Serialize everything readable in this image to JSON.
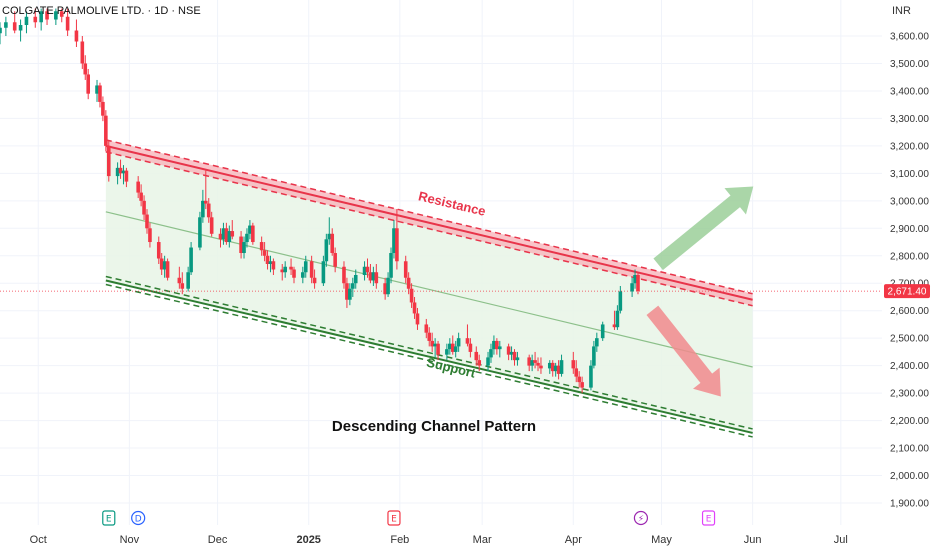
{
  "header": {
    "symbol": "COLGATE PALMOLIVE LTD. · 1D · NSE",
    "currency": "INR"
  },
  "colors": {
    "up": "#089981",
    "down": "#f23645",
    "resistance": "#e8344a",
    "support": "#2e7d32",
    "channel_fill": "#e7f5e6",
    "price_tag": "#f23645"
  },
  "events": [
    {
      "letter": "E",
      "kind": "earnings",
      "date": "2024-10-25",
      "color": "#089981"
    },
    {
      "letter": "D",
      "kind": "dividend",
      "date": "2024-11-04",
      "color": "#2962ff"
    },
    {
      "letter": "E",
      "kind": "earnings",
      "date": "2025-01-30",
      "color": "#f23645"
    },
    {
      "letter": "⚡",
      "kind": "event",
      "date": "2025-04-24",
      "color": "#9c27b0"
    },
    {
      "letter": "E",
      "kind": "earnings",
      "date": "2025-05-17",
      "color": "#e040fb"
    }
  ],
  "chart_data": {
    "type": "candlestick",
    "title": "Descending Channel Pattern",
    "y_ticks": [
      3600,
      3500,
      3400,
      3300,
      3200,
      3100,
      3000,
      2900,
      2800,
      2700,
      2600,
      2500,
      2400,
      2300,
      2200,
      2100,
      2000,
      1900
    ],
    "y_tick_labels": [
      "3,600.00",
      "3,500.00",
      "3,400.00",
      "3,300.00",
      "3,200.00",
      "3,100.00",
      "3,000.00",
      "2,900.00",
      "2,800.00",
      "2,700.00",
      "2,600.00",
      "2,500.00",
      "2,400.00",
      "2,300.00",
      "2,200.00",
      "2,100.00",
      "2,000.00",
      "1,900.00"
    ],
    "ylim": [
      1850,
      3700
    ],
    "x_range": [
      "2024-09-18",
      "2025-07-15"
    ],
    "x_ticks": [
      {
        "label": "Oct",
        "date": "2024-10-01"
      },
      {
        "label": "Nov",
        "date": "2024-11-01"
      },
      {
        "label": "Dec",
        "date": "2024-12-01"
      },
      {
        "label": "2025",
        "date": "2025-01-01"
      },
      {
        "label": "Feb",
        "date": "2025-02-01"
      },
      {
        "label": "Mar",
        "date": "2025-03-01"
      },
      {
        "label": "Apr",
        "date": "2025-04-01"
      },
      {
        "label": "May",
        "date": "2025-05-01"
      },
      {
        "label": "Jun",
        "date": "2025-06-01"
      },
      {
        "label": "Jul",
        "date": "2025-07-01"
      }
    ],
    "last_price": 2671.4,
    "last_price_label": "2,671.40",
    "resistance": {
      "label": "Resistance",
      "start": [
        "2024-10-24",
        3200
      ],
      "end": [
        "2025-06-01",
        2640
      ]
    },
    "support": {
      "label": "Support",
      "start": [
        "2024-10-24",
        2710
      ],
      "end": [
        "2025-06-01",
        2155
      ]
    },
    "midline": {
      "start": [
        "2024-10-24",
        2960
      ],
      "end": [
        "2025-06-01",
        2395
      ]
    },
    "arrows": [
      {
        "direction": "up",
        "from": [
          "2025-04-30",
          2770
        ],
        "to": [
          "2025-06-01",
          3050
        ],
        "color": "#9ccf9a"
      },
      {
        "direction": "down",
        "from": [
          "2025-04-28",
          2600
        ],
        "to": [
          "2025-05-21",
          2290
        ],
        "color": "#f28b8e"
      }
    ],
    "candles": [
      {
        "d": "2024-09-18",
        "o": 3610,
        "h": 3650,
        "l": 3570,
        "c": 3630
      },
      {
        "d": "2024-09-20",
        "o": 3630,
        "h": 3670,
        "l": 3600,
        "c": 3650
      },
      {
        "d": "2024-09-23",
        "o": 3650,
        "h": 3690,
        "l": 3610,
        "c": 3620
      },
      {
        "d": "2024-09-25",
        "o": 3620,
        "h": 3660,
        "l": 3580,
        "c": 3640
      },
      {
        "d": "2024-09-27",
        "o": 3640,
        "h": 3690,
        "l": 3610,
        "c": 3670
      },
      {
        "d": "2024-09-30",
        "o": 3670,
        "h": 3700,
        "l": 3630,
        "c": 3650
      },
      {
        "d": "2024-10-02",
        "o": 3650,
        "h": 3700,
        "l": 3620,
        "c": 3690
      },
      {
        "d": "2024-10-04",
        "o": 3690,
        "h": 3700,
        "l": 3640,
        "c": 3660
      },
      {
        "d": "2024-10-07",
        "o": 3660,
        "h": 3700,
        "l": 3640,
        "c": 3690
      },
      {
        "d": "2024-10-09",
        "o": 3690,
        "h": 3700,
        "l": 3650,
        "c": 3670
      },
      {
        "d": "2024-10-11",
        "o": 3670,
        "h": 3700,
        "l": 3600,
        "c": 3620
      },
      {
        "d": "2024-10-14",
        "o": 3620,
        "h": 3660,
        "l": 3560,
        "c": 3580
      },
      {
        "d": "2024-10-16",
        "o": 3580,
        "h": 3600,
        "l": 3480,
        "c": 3500
      },
      {
        "d": "2024-10-17",
        "o": 3500,
        "h": 3530,
        "l": 3440,
        "c": 3460
      },
      {
        "d": "2024-10-18",
        "o": 3460,
        "h": 3480,
        "l": 3370,
        "c": 3390
      },
      {
        "d": "2024-10-21",
        "o": 3390,
        "h": 3440,
        "l": 3360,
        "c": 3420
      },
      {
        "d": "2024-10-22",
        "o": 3420,
        "h": 3430,
        "l": 3340,
        "c": 3360
      },
      {
        "d": "2024-10-23",
        "o": 3360,
        "h": 3380,
        "l": 3290,
        "c": 3310
      },
      {
        "d": "2024-10-24",
        "o": 3310,
        "h": 3330,
        "l": 3180,
        "c": 3200
      },
      {
        "d": "2024-10-25",
        "o": 3200,
        "h": 3220,
        "l": 3070,
        "c": 3090
      },
      {
        "d": "2024-10-28",
        "o": 3090,
        "h": 3140,
        "l": 3060,
        "c": 3120
      },
      {
        "d": "2024-10-29",
        "o": 3120,
        "h": 3150,
        "l": 3080,
        "c": 3100
      },
      {
        "d": "2024-10-30",
        "o": 3100,
        "h": 3130,
        "l": 3060,
        "c": 3110
      },
      {
        "d": "2024-10-31",
        "o": 3110,
        "h": 3120,
        "l": 3050,
        "c": 3070
      },
      {
        "d": "2024-11-04",
        "o": 3070,
        "h": 3090,
        "l": 3010,
        "c": 3030
      },
      {
        "d": "2024-11-05",
        "o": 3030,
        "h": 3060,
        "l": 2980,
        "c": 3000
      },
      {
        "d": "2024-11-06",
        "o": 3000,
        "h": 3020,
        "l": 2930,
        "c": 2950
      },
      {
        "d": "2024-11-07",
        "o": 2950,
        "h": 2970,
        "l": 2880,
        "c": 2900
      },
      {
        "d": "2024-11-08",
        "o": 2900,
        "h": 2920,
        "l": 2830,
        "c": 2850
      },
      {
        "d": "2024-11-11",
        "o": 2850,
        "h": 2870,
        "l": 2770,
        "c": 2790
      },
      {
        "d": "2024-11-12",
        "o": 2790,
        "h": 2810,
        "l": 2730,
        "c": 2750
      },
      {
        "d": "2024-11-13",
        "o": 2750,
        "h": 2800,
        "l": 2720,
        "c": 2780
      },
      {
        "d": "2024-11-14",
        "o": 2780,
        "h": 2790,
        "l": 2710,
        "c": 2720
      },
      {
        "d": "2024-11-18",
        "o": 2720,
        "h": 2760,
        "l": 2680,
        "c": 2700
      },
      {
        "d": "2024-11-19",
        "o": 2700,
        "h": 2740,
        "l": 2660,
        "c": 2680
      },
      {
        "d": "2024-11-21",
        "o": 2680,
        "h": 2760,
        "l": 2670,
        "c": 2740
      },
      {
        "d": "2024-11-22",
        "o": 2740,
        "h": 2850,
        "l": 2730,
        "c": 2830
      },
      {
        "d": "2024-11-25",
        "o": 2830,
        "h": 2960,
        "l": 2820,
        "c": 2940
      },
      {
        "d": "2024-11-26",
        "o": 2940,
        "h": 3040,
        "l": 2920,
        "c": 3000
      },
      {
        "d": "2024-11-27",
        "o": 3000,
        "h": 3110,
        "l": 2970,
        "c": 2990
      },
      {
        "d": "2024-11-28",
        "o": 2990,
        "h": 3010,
        "l": 2920,
        "c": 2940
      },
      {
        "d": "2024-11-29",
        "o": 2940,
        "h": 2960,
        "l": 2870,
        "c": 2880
      },
      {
        "d": "2024-12-02",
        "o": 2880,
        "h": 2900,
        "l": 2830,
        "c": 2860
      },
      {
        "d": "2024-12-03",
        "o": 2860,
        "h": 2920,
        "l": 2840,
        "c": 2900
      },
      {
        "d": "2024-12-04",
        "o": 2900,
        "h": 2920,
        "l": 2840,
        "c": 2850
      },
      {
        "d": "2024-12-05",
        "o": 2850,
        "h": 2910,
        "l": 2830,
        "c": 2890
      },
      {
        "d": "2024-12-06",
        "o": 2890,
        "h": 2930,
        "l": 2860,
        "c": 2870
      },
      {
        "d": "2024-12-09",
        "o": 2870,
        "h": 2890,
        "l": 2790,
        "c": 2810
      },
      {
        "d": "2024-12-10",
        "o": 2810,
        "h": 2870,
        "l": 2790,
        "c": 2850
      },
      {
        "d": "2024-12-11",
        "o": 2850,
        "h": 2900,
        "l": 2830,
        "c": 2880
      },
      {
        "d": "2024-12-12",
        "o": 2880,
        "h": 2930,
        "l": 2860,
        "c": 2910
      },
      {
        "d": "2024-12-13",
        "o": 2910,
        "h": 2920,
        "l": 2840,
        "c": 2850
      },
      {
        "d": "2024-12-16",
        "o": 2850,
        "h": 2870,
        "l": 2800,
        "c": 2820
      },
      {
        "d": "2024-12-17",
        "o": 2820,
        "h": 2850,
        "l": 2780,
        "c": 2800
      },
      {
        "d": "2024-12-18",
        "o": 2800,
        "h": 2820,
        "l": 2750,
        "c": 2770
      },
      {
        "d": "2024-12-19",
        "o": 2770,
        "h": 2800,
        "l": 2740,
        "c": 2780
      },
      {
        "d": "2024-12-20",
        "o": 2780,
        "h": 2790,
        "l": 2730,
        "c": 2750
      },
      {
        "d": "2024-12-23",
        "o": 2750,
        "h": 2770,
        "l": 2710,
        "c": 2740
      },
      {
        "d": "2024-12-24",
        "o": 2740,
        "h": 2780,
        "l": 2720,
        "c": 2760
      },
      {
        "d": "2024-12-26",
        "o": 2760,
        "h": 2790,
        "l": 2730,
        "c": 2750
      },
      {
        "d": "2024-12-27",
        "o": 2750,
        "h": 2760,
        "l": 2700,
        "c": 2720
      },
      {
        "d": "2024-12-30",
        "o": 2720,
        "h": 2760,
        "l": 2700,
        "c": 2740
      },
      {
        "d": "2024-12-31",
        "o": 2740,
        "h": 2800,
        "l": 2720,
        "c": 2780
      },
      {
        "d": "2025-01-02",
        "o": 2780,
        "h": 2800,
        "l": 2700,
        "c": 2720
      },
      {
        "d": "2025-01-03",
        "o": 2720,
        "h": 2750,
        "l": 2680,
        "c": 2700
      },
      {
        "d": "2025-01-06",
        "o": 2700,
        "h": 2800,
        "l": 2690,
        "c": 2780
      },
      {
        "d": "2025-01-07",
        "o": 2780,
        "h": 2880,
        "l": 2760,
        "c": 2860
      },
      {
        "d": "2025-01-08",
        "o": 2860,
        "h": 2940,
        "l": 2840,
        "c": 2880
      },
      {
        "d": "2025-01-09",
        "o": 2880,
        "h": 2900,
        "l": 2800,
        "c": 2810
      },
      {
        "d": "2025-01-10",
        "o": 2810,
        "h": 2830,
        "l": 2740,
        "c": 2760
      },
      {
        "d": "2025-01-13",
        "o": 2760,
        "h": 2780,
        "l": 2680,
        "c": 2700
      },
      {
        "d": "2025-01-14",
        "o": 2700,
        "h": 2720,
        "l": 2610,
        "c": 2640
      },
      {
        "d": "2025-01-15",
        "o": 2640,
        "h": 2700,
        "l": 2620,
        "c": 2680
      },
      {
        "d": "2025-01-16",
        "o": 2680,
        "h": 2720,
        "l": 2650,
        "c": 2700
      },
      {
        "d": "2025-01-17",
        "o": 2700,
        "h": 2750,
        "l": 2680,
        "c": 2730
      },
      {
        "d": "2025-01-20",
        "o": 2730,
        "h": 2780,
        "l": 2710,
        "c": 2760
      },
      {
        "d": "2025-01-21",
        "o": 2760,
        "h": 2790,
        "l": 2720,
        "c": 2740
      },
      {
        "d": "2025-01-22",
        "o": 2740,
        "h": 2770,
        "l": 2700,
        "c": 2710
      },
      {
        "d": "2025-01-23",
        "o": 2710,
        "h": 2760,
        "l": 2690,
        "c": 2740
      },
      {
        "d": "2025-01-24",
        "o": 2740,
        "h": 2770,
        "l": 2680,
        "c": 2700
      },
      {
        "d": "2025-01-27",
        "o": 2700,
        "h": 2720,
        "l": 2640,
        "c": 2660
      },
      {
        "d": "2025-01-28",
        "o": 2660,
        "h": 2740,
        "l": 2650,
        "c": 2720
      },
      {
        "d": "2025-01-29",
        "o": 2720,
        "h": 2830,
        "l": 2700,
        "c": 2810
      },
      {
        "d": "2025-01-30",
        "o": 2810,
        "h": 2930,
        "l": 2790,
        "c": 2900
      },
      {
        "d": "2025-01-31",
        "o": 2900,
        "h": 2970,
        "l": 2750,
        "c": 2780
      },
      {
        "d": "2025-02-03",
        "o": 2780,
        "h": 2800,
        "l": 2700,
        "c": 2720
      },
      {
        "d": "2025-02-04",
        "o": 2720,
        "h": 2740,
        "l": 2660,
        "c": 2680
      },
      {
        "d": "2025-02-05",
        "o": 2680,
        "h": 2700,
        "l": 2610,
        "c": 2630
      },
      {
        "d": "2025-02-06",
        "o": 2630,
        "h": 2650,
        "l": 2570,
        "c": 2590
      },
      {
        "d": "2025-02-07",
        "o": 2590,
        "h": 2610,
        "l": 2530,
        "c": 2550
      },
      {
        "d": "2025-02-10",
        "o": 2550,
        "h": 2570,
        "l": 2500,
        "c": 2520
      },
      {
        "d": "2025-02-11",
        "o": 2520,
        "h": 2540,
        "l": 2470,
        "c": 2490
      },
      {
        "d": "2025-02-12",
        "o": 2490,
        "h": 2520,
        "l": 2450,
        "c": 2470
      },
      {
        "d": "2025-02-13",
        "o": 2470,
        "h": 2500,
        "l": 2430,
        "c": 2480
      },
      {
        "d": "2025-02-14",
        "o": 2480,
        "h": 2490,
        "l": 2420,
        "c": 2440
      },
      {
        "d": "2025-02-17",
        "o": 2440,
        "h": 2480,
        "l": 2420,
        "c": 2460
      },
      {
        "d": "2025-02-18",
        "o": 2460,
        "h": 2500,
        "l": 2440,
        "c": 2480
      },
      {
        "d": "2025-02-19",
        "o": 2480,
        "h": 2510,
        "l": 2440,
        "c": 2450
      },
      {
        "d": "2025-02-20",
        "o": 2450,
        "h": 2490,
        "l": 2430,
        "c": 2470
      },
      {
        "d": "2025-02-21",
        "o": 2470,
        "h": 2520,
        "l": 2450,
        "c": 2500
      },
      {
        "d": "2025-02-24",
        "o": 2500,
        "h": 2550,
        "l": 2470,
        "c": 2480
      },
      {
        "d": "2025-02-25",
        "o": 2480,
        "h": 2500,
        "l": 2430,
        "c": 2450
      },
      {
        "d": "2025-02-27",
        "o": 2450,
        "h": 2470,
        "l": 2400,
        "c": 2420
      },
      {
        "d": "2025-02-28",
        "o": 2420,
        "h": 2440,
        "l": 2380,
        "c": 2400
      },
      {
        "d": "2025-03-03",
        "o": 2400,
        "h": 2450,
        "l": 2380,
        "c": 2430
      },
      {
        "d": "2025-03-04",
        "o": 2430,
        "h": 2480,
        "l": 2410,
        "c": 2460
      },
      {
        "d": "2025-03-05",
        "o": 2460,
        "h": 2510,
        "l": 2440,
        "c": 2490
      },
      {
        "d": "2025-03-06",
        "o": 2490,
        "h": 2500,
        "l": 2440,
        "c": 2460
      },
      {
        "d": "2025-03-07",
        "o": 2460,
        "h": 2490,
        "l": 2430,
        "c": 2470
      },
      {
        "d": "2025-03-10",
        "o": 2470,
        "h": 2480,
        "l": 2420,
        "c": 2440
      },
      {
        "d": "2025-03-11",
        "o": 2440,
        "h": 2470,
        "l": 2420,
        "c": 2450
      },
      {
        "d": "2025-03-12",
        "o": 2450,
        "h": 2460,
        "l": 2400,
        "c": 2420
      },
      {
        "d": "2025-03-13",
        "o": 2420,
        "h": 2450,
        "l": 2400,
        "c": 2430
      },
      {
        "d": "2025-03-17",
        "o": 2430,
        "h": 2440,
        "l": 2380,
        "c": 2400
      },
      {
        "d": "2025-03-18",
        "o": 2400,
        "h": 2440,
        "l": 2380,
        "c": 2420
      },
      {
        "d": "2025-03-19",
        "o": 2420,
        "h": 2450,
        "l": 2390,
        "c": 2410
      },
      {
        "d": "2025-03-20",
        "o": 2410,
        "h": 2430,
        "l": 2380,
        "c": 2400
      },
      {
        "d": "2025-03-21",
        "o": 2400,
        "h": 2430,
        "l": 2370,
        "c": 2390
      },
      {
        "d": "2025-03-24",
        "o": 2390,
        "h": 2420,
        "l": 2370,
        "c": 2410
      },
      {
        "d": "2025-03-25",
        "o": 2410,
        "h": 2420,
        "l": 2360,
        "c": 2380
      },
      {
        "d": "2025-03-26",
        "o": 2380,
        "h": 2410,
        "l": 2360,
        "c": 2400
      },
      {
        "d": "2025-03-27",
        "o": 2400,
        "h": 2420,
        "l": 2350,
        "c": 2370
      },
      {
        "d": "2025-03-28",
        "o": 2370,
        "h": 2440,
        "l": 2360,
        "c": 2420
      },
      {
        "d": "2025-04-01",
        "o": 2420,
        "h": 2450,
        "l": 2370,
        "c": 2390
      },
      {
        "d": "2025-04-02",
        "o": 2390,
        "h": 2420,
        "l": 2340,
        "c": 2360
      },
      {
        "d": "2025-04-03",
        "o": 2360,
        "h": 2380,
        "l": 2320,
        "c": 2340
      },
      {
        "d": "2025-04-04",
        "o": 2340,
        "h": 2360,
        "l": 2300,
        "c": 2320
      },
      {
        "d": "2025-04-07",
        "o": 2320,
        "h": 2420,
        "l": 2310,
        "c": 2400
      },
      {
        "d": "2025-04-08",
        "o": 2400,
        "h": 2490,
        "l": 2390,
        "c": 2470
      },
      {
        "d": "2025-04-09",
        "o": 2470,
        "h": 2520,
        "l": 2450,
        "c": 2500
      },
      {
        "d": "2025-04-11",
        "o": 2500,
        "h": 2560,
        "l": 2490,
        "c": 2550
      },
      {
        "d": "2025-04-15",
        "o": 2550,
        "h": 2600,
        "l": 2530,
        "c": 2540
      },
      {
        "d": "2025-04-16",
        "o": 2540,
        "h": 2620,
        "l": 2530,
        "c": 2600
      },
      {
        "d": "2025-04-17",
        "o": 2600,
        "h": 2690,
        "l": 2590,
        "c": 2670
      },
      {
        "d": "2025-04-21",
        "o": 2670,
        "h": 2720,
        "l": 2650,
        "c": 2700
      },
      {
        "d": "2025-04-22",
        "o": 2700,
        "h": 2750,
        "l": 2680,
        "c": 2730
      },
      {
        "d": "2025-04-23",
        "o": 2730,
        "h": 2740,
        "l": 2660,
        "c": 2671.4
      }
    ]
  }
}
